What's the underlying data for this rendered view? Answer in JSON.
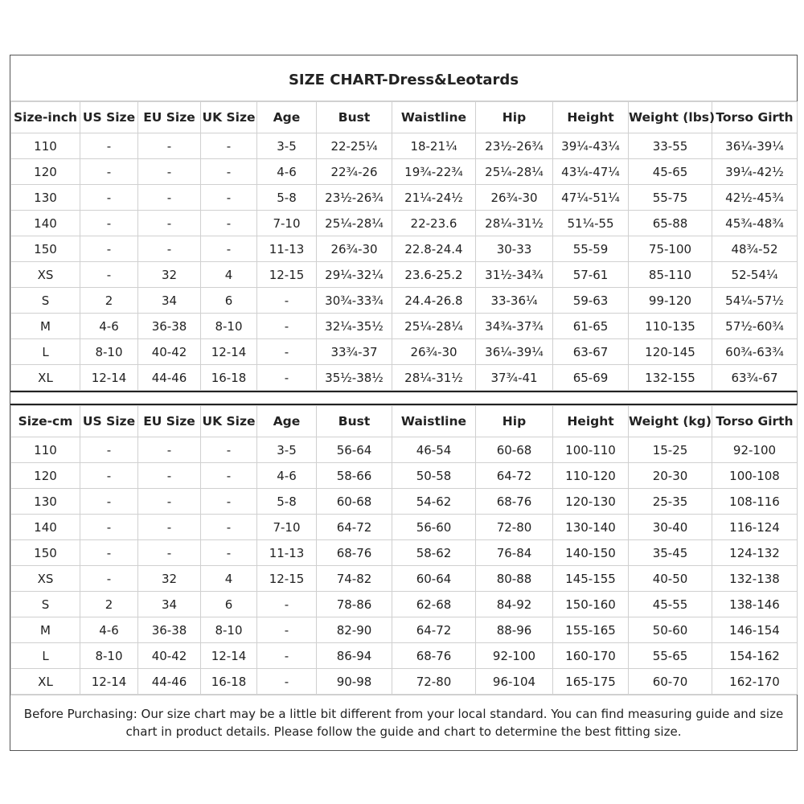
{
  "title": "SIZE CHART-Dress&Leotards",
  "inch": {
    "headers": [
      "Size-inch",
      "US Size",
      "EU Size",
      "UK Size",
      "Age",
      "Bust",
      "Waistline",
      "Hip",
      "Height",
      "Weight (lbs)",
      "Torso Girth"
    ],
    "rows": [
      [
        "110",
        "-",
        "-",
        "-",
        "3-5",
        "22-25¼",
        "18-21¼",
        "23½-26¾",
        "39¼-43¼",
        "33-55",
        "36¼-39¼"
      ],
      [
        "120",
        "-",
        "-",
        "-",
        "4-6",
        "22¾-26",
        "19¾-22¾",
        "25¼-28¼",
        "43¼-47¼",
        "45-65",
        "39¼-42½"
      ],
      [
        "130",
        "-",
        "-",
        "-",
        "5-8",
        "23½-26¾",
        "21¼-24½",
        "26¾-30",
        "47¼-51¼",
        "55-75",
        "42½-45¾"
      ],
      [
        "140",
        "-",
        "-",
        "-",
        "7-10",
        "25¼-28¼",
        "22-23.6",
        "28¼-31½",
        "51¼-55",
        "65-88",
        "45¾-48¾"
      ],
      [
        "150",
        "-",
        "-",
        "-",
        "11-13",
        "26¾-30",
        "22.8-24.4",
        "30-33",
        "55-59",
        "75-100",
        "48¾-52"
      ],
      [
        "XS",
        "-",
        "32",
        "4",
        "12-15",
        "29¼-32¼",
        "23.6-25.2",
        "31½-34¾",
        "57-61",
        "85-110",
        "52-54¼"
      ],
      [
        "S",
        "2",
        "34",
        "6",
        "-",
        "30¾-33¾",
        "24.4-26.8",
        "33-36¼",
        "59-63",
        "99-120",
        "54¼-57½"
      ],
      [
        "M",
        "4-6",
        "36-38",
        "8-10",
        "-",
        "32¼-35½",
        "25¼-28¼",
        "34¾-37¾",
        "61-65",
        "110-135",
        "57½-60¾"
      ],
      [
        "L",
        "8-10",
        "40-42",
        "12-14",
        "-",
        "33¾-37",
        "26¾-30",
        "36¼-39¼",
        "63-67",
        "120-145",
        "60¾-63¾"
      ],
      [
        "XL",
        "12-14",
        "44-46",
        "16-18",
        "-",
        "35½-38½",
        "28¼-31½",
        "37¾-41",
        "65-69",
        "132-155",
        "63¾-67"
      ]
    ]
  },
  "cm": {
    "headers": [
      "Size-cm",
      "US Size",
      "EU Size",
      "UK Size",
      "Age",
      "Bust",
      "Waistline",
      "Hip",
      "Height",
      "Weight (kg)",
      "Torso Girth"
    ],
    "rows": [
      [
        "110",
        "-",
        "-",
        "-",
        "3-5",
        "56-64",
        "46-54",
        "60-68",
        "100-110",
        "15-25",
        "92-100"
      ],
      [
        "120",
        "-",
        "-",
        "-",
        "4-6",
        "58-66",
        "50-58",
        "64-72",
        "110-120",
        "20-30",
        "100-108"
      ],
      [
        "130",
        "-",
        "-",
        "-",
        "5-8",
        "60-68",
        "54-62",
        "68-76",
        "120-130",
        "25-35",
        "108-116"
      ],
      [
        "140",
        "-",
        "-",
        "-",
        "7-10",
        "64-72",
        "56-60",
        "72-80",
        "130-140",
        "30-40",
        "116-124"
      ],
      [
        "150",
        "-",
        "-",
        "-",
        "11-13",
        "68-76",
        "58-62",
        "76-84",
        "140-150",
        "35-45",
        "124-132"
      ],
      [
        "XS",
        "-",
        "32",
        "4",
        "12-15",
        "74-82",
        "60-64",
        "80-88",
        "145-155",
        "40-50",
        "132-138"
      ],
      [
        "S",
        "2",
        "34",
        "6",
        "-",
        "78-86",
        "62-68",
        "84-92",
        "150-160",
        "45-55",
        "138-146"
      ],
      [
        "M",
        "4-6",
        "36-38",
        "8-10",
        "-",
        "82-90",
        "64-72",
        "88-96",
        "155-165",
        "50-60",
        "146-154"
      ],
      [
        "L",
        "8-10",
        "40-42",
        "12-14",
        "-",
        "86-94",
        "68-76",
        "92-100",
        "160-170",
        "55-65",
        "154-162"
      ],
      [
        "XL",
        "12-14",
        "44-46",
        "16-18",
        "-",
        "90-98",
        "72-80",
        "96-104",
        "165-175",
        "60-70",
        "162-170"
      ]
    ]
  },
  "footer": "Before Purchasing: Our size chart may be a little bit different from your local standard. You can find measuring guide and size chart in product details. Please follow the guide and chart to determine the best fitting size."
}
